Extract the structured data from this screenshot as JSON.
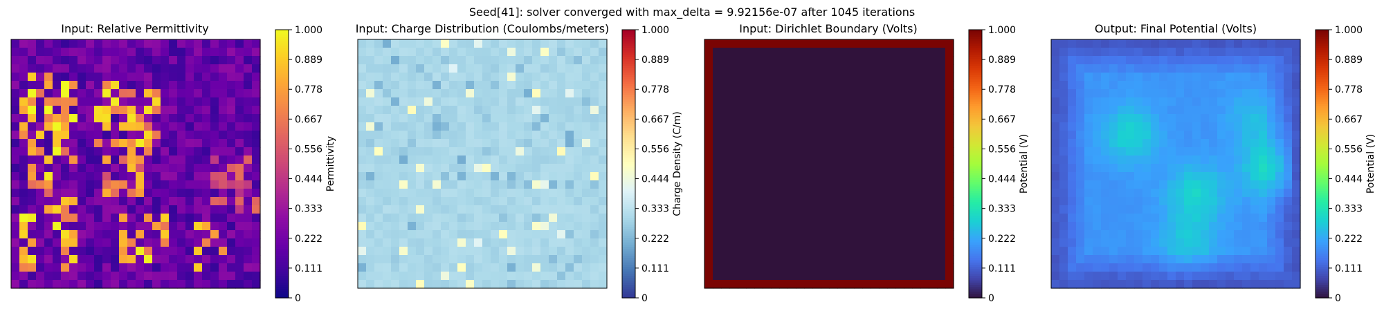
{
  "figure": {
    "suptitle": "Seed[41]: solver converged with max_delta = 9.92156e-07 after 1045 iterations"
  },
  "colors": {
    "boundary_red": "#800000",
    "boundary_inner": "#30123b"
  },
  "chart_data": [
    {
      "type": "heatmap",
      "title": "Input: Relative Permittivity",
      "colormap": "plasma",
      "grid_size": [
        30,
        30
      ],
      "zlim": [
        0,
        1
      ],
      "colorbar_label": "Permittivity",
      "colorbar_ticks": [
        "0",
        "0.111",
        "0.222",
        "0.333",
        "0.444",
        "0.556",
        "0.667",
        "0.778",
        "0.889",
        "1.000"
      ],
      "hot_regions": [
        {
          "rows": [
            4,
            13
          ],
          "cols": [
            1,
            7
          ],
          "level": 0.85
        },
        {
          "rows": [
            13,
            20
          ],
          "cols": [
            2,
            7
          ],
          "level": 0.8
        },
        {
          "rows": [
            21,
            27
          ],
          "cols": [
            1,
            7
          ],
          "level": 0.85
        },
        {
          "rows": [
            5,
            12
          ],
          "cols": [
            10,
            17
          ],
          "level": 0.8
        },
        {
          "rows": [
            12,
            18
          ],
          "cols": [
            11,
            16
          ],
          "level": 0.7
        },
        {
          "rows": [
            21,
            26
          ],
          "cols": [
            13,
            18
          ],
          "level": 0.85
        },
        {
          "rows": [
            22,
            27
          ],
          "cols": [
            22,
            25
          ],
          "level": 0.8
        },
        {
          "rows": [
            14,
            20
          ],
          "cols": [
            24,
            29
          ],
          "level": 0.55
        }
      ]
    },
    {
      "type": "heatmap",
      "title": "Input: Charge Distribution (Coulombs/meters)",
      "colormap": "RdYlBu_r",
      "grid_size": [
        30,
        30
      ],
      "zlim": [
        0,
        1
      ],
      "background_level": 0.3,
      "colorbar_label": "Charge Density (C/m)",
      "colorbar_ticks": [
        "0",
        "0.111",
        "0.222",
        "0.333",
        "0.444",
        "0.556",
        "0.667",
        "0.778",
        "0.889",
        "1.000"
      ]
    },
    {
      "type": "heatmap",
      "title": "Input: Dirichlet Boundary (Volts)",
      "colormap": "turbo",
      "grid_size": [
        30,
        30
      ],
      "zlim": [
        0,
        1
      ],
      "boundary_value": 1.0,
      "interior_value": 0.0,
      "colorbar_label": "Potential (V)",
      "colorbar_ticks": [
        "0",
        "0.111",
        "0.222",
        "0.333",
        "0.444",
        "0.556",
        "0.667",
        "0.778",
        "0.889",
        "1.000"
      ]
    },
    {
      "type": "heatmap",
      "title": "Output: Final Potential (Volts)",
      "colormap": "turbo",
      "grid_size": [
        30,
        30
      ],
      "zlim": [
        0,
        1
      ],
      "base_level": 0.2,
      "peaks": [
        {
          "row": 11,
          "col": 9,
          "value": 0.3
        },
        {
          "row": 15,
          "col": 26,
          "value": 0.32
        },
        {
          "row": 18,
          "col": 17,
          "value": 0.3
        },
        {
          "row": 24,
          "col": 16,
          "value": 0.28
        },
        {
          "row": 9,
          "col": 24,
          "value": 0.26
        }
      ],
      "colorbar_label": "Potential (V)",
      "colorbar_ticks": [
        "0",
        "0.111",
        "0.222",
        "0.333",
        "0.444",
        "0.556",
        "0.667",
        "0.778",
        "0.889",
        "1.000"
      ]
    }
  ]
}
